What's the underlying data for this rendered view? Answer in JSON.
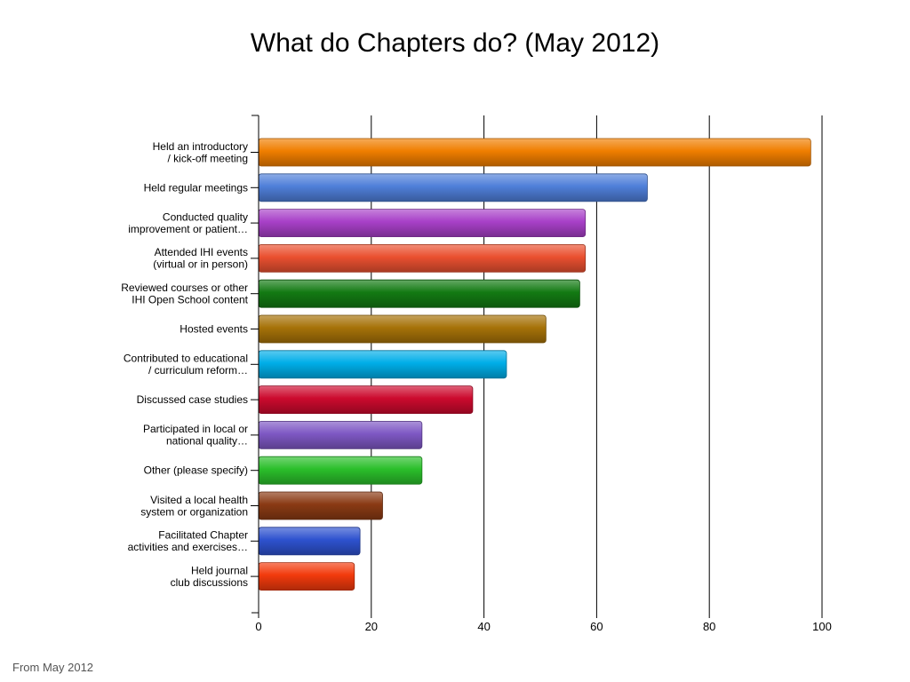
{
  "slide": {
    "title": "What do Chapters do? (May 2012)",
    "footer": "From May 2012"
  },
  "chart_data": {
    "type": "bar",
    "orientation": "horizontal",
    "title": "",
    "xlabel": "",
    "ylabel": "",
    "xlim": [
      0,
      100
    ],
    "x_ticks": [
      0,
      20,
      40,
      60,
      80,
      100
    ],
    "grid": true,
    "legend": "none",
    "categories": [
      [
        "Held an introductory",
        "/ kick-off meeting"
      ],
      [
        "Held regular meetings"
      ],
      [
        "Conducted quality",
        "improvement or patient…"
      ],
      [
        "Attended IHI events",
        "(virtual or in person)"
      ],
      [
        "Reviewed courses or other",
        "IHI Open School content"
      ],
      [
        "Hosted events"
      ],
      [
        "Contributed to educational",
        "/ curriculum reform…"
      ],
      [
        "Discussed case studies"
      ],
      [
        "Participated in local or",
        "national quality…"
      ],
      [
        "Other (please specify)"
      ],
      [
        "Visited a local health",
        "system or organization"
      ],
      [
        "Facilitated Chapter",
        "activities and exercises…"
      ],
      [
        "Held journal",
        "club discussions"
      ]
    ],
    "values": [
      98,
      69,
      58,
      58,
      57,
      51,
      44,
      38,
      29,
      29,
      22,
      18,
      17
    ],
    "colors": [
      "#f07e00",
      "#4f7fd9",
      "#a840c8",
      "#ea5030",
      "#137a13",
      "#a67208",
      "#00aee8",
      "#cc0a2e",
      "#7e58c4",
      "#2bbf2b",
      "#8a3a14",
      "#2e52cf",
      "#f23a0c"
    ]
  }
}
